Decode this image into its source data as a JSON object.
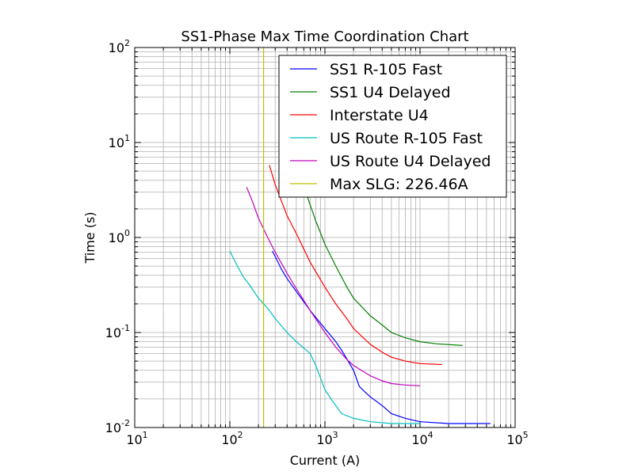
{
  "chart_data": {
    "type": "line",
    "title": "SS1-Phase Max Time Coordination Chart",
    "xlabel": "Current (A)",
    "ylabel": "Time (s)",
    "xscale": "log",
    "yscale": "log",
    "xlim": [
      10,
      100000
    ],
    "ylim": [
      0.01,
      100
    ],
    "grid": true,
    "legend_position": "upper-right",
    "x_tick_labels": [
      {
        "base": "10",
        "exp": "1"
      },
      {
        "base": "10",
        "exp": "2"
      },
      {
        "base": "10",
        "exp": "3"
      },
      {
        "base": "10",
        "exp": "4"
      },
      {
        "base": "10",
        "exp": "5"
      }
    ],
    "y_tick_labels": [
      {
        "base": "10",
        "exp": "-2"
      },
      {
        "base": "10",
        "exp": "-1"
      },
      {
        "base": "10",
        "exp": "0"
      },
      {
        "base": "10",
        "exp": "1"
      },
      {
        "base": "10",
        "exp": "2"
      }
    ],
    "series": [
      {
        "name": "SS1 R-105 Fast",
        "color": "#0000ff",
        "points": [
          [
            280,
            0.72
          ],
          [
            300,
            0.63
          ],
          [
            350,
            0.46
          ],
          [
            400,
            0.37
          ],
          [
            500,
            0.27
          ],
          [
            700,
            0.17
          ],
          [
            1000,
            0.11
          ],
          [
            1300,
            0.08
          ],
          [
            1500,
            0.065
          ],
          [
            1800,
            0.048
          ],
          [
            2000,
            0.04
          ],
          [
            2300,
            0.027
          ],
          [
            2600,
            0.024
          ],
          [
            3000,
            0.021
          ],
          [
            4000,
            0.017
          ],
          [
            5000,
            0.014
          ],
          [
            7000,
            0.0125
          ],
          [
            10000,
            0.0115
          ],
          [
            20000,
            0.011
          ],
          [
            55000,
            0.011
          ]
        ]
      },
      {
        "name": "SS1 U4 Delayed",
        "color": "#008000",
        "points": [
          [
            630,
            3.0
          ],
          [
            700,
            2.2
          ],
          [
            800,
            1.5
          ],
          [
            1000,
            0.85
          ],
          [
            1300,
            0.5
          ],
          [
            1700,
            0.3
          ],
          [
            2000,
            0.23
          ],
          [
            3000,
            0.15
          ],
          [
            4000,
            0.12
          ],
          [
            5000,
            0.1
          ],
          [
            7000,
            0.088
          ],
          [
            10000,
            0.08
          ],
          [
            15000,
            0.076
          ],
          [
            28000,
            0.073
          ]
        ]
      },
      {
        "name": "Interstate U4",
        "color": "#ff0000",
        "points": [
          [
            260,
            5.8
          ],
          [
            300,
            3.6
          ],
          [
            350,
            2.4
          ],
          [
            400,
            1.7
          ],
          [
            500,
            1.1
          ],
          [
            700,
            0.55
          ],
          [
            1000,
            0.3
          ],
          [
            1300,
            0.2
          ],
          [
            1700,
            0.14
          ],
          [
            2000,
            0.11
          ],
          [
            3000,
            0.075
          ],
          [
            4000,
            0.062
          ],
          [
            5000,
            0.055
          ],
          [
            7000,
            0.05
          ],
          [
            10000,
            0.047
          ],
          [
            17000,
            0.046
          ]
        ]
      },
      {
        "name": "US Route R-105 Fast",
        "color": "#00bfbf",
        "points": [
          [
            100,
            0.72
          ],
          [
            120,
            0.5
          ],
          [
            140,
            0.38
          ],
          [
            160,
            0.32
          ],
          [
            200,
            0.23
          ],
          [
            250,
            0.18
          ],
          [
            300,
            0.14
          ],
          [
            400,
            0.1
          ],
          [
            500,
            0.08
          ],
          [
            700,
            0.06
          ],
          [
            800,
            0.045
          ],
          [
            900,
            0.033
          ],
          [
            1000,
            0.025
          ],
          [
            1200,
            0.019
          ],
          [
            1500,
            0.014
          ],
          [
            2000,
            0.0125
          ],
          [
            3000,
            0.0115
          ],
          [
            5000,
            0.011
          ],
          [
            10000,
            0.011
          ]
        ]
      },
      {
        "name": "US Route U4 Delayed",
        "color": "#bf00bf",
        "points": [
          [
            150,
            3.4
          ],
          [
            170,
            2.5
          ],
          [
            200,
            1.6
          ],
          [
            250,
            1.0
          ],
          [
            300,
            0.7
          ],
          [
            400,
            0.42
          ],
          [
            500,
            0.29
          ],
          [
            700,
            0.17
          ],
          [
            1000,
            0.1
          ],
          [
            1300,
            0.07
          ],
          [
            1700,
            0.052
          ],
          [
            2000,
            0.045
          ],
          [
            3000,
            0.035
          ],
          [
            4000,
            0.031
          ],
          [
            5000,
            0.029
          ],
          [
            7000,
            0.028
          ],
          [
            10000,
            0.0275
          ]
        ]
      },
      {
        "name": "Max SLG: 226.46A",
        "color": "#bfbf00",
        "points": [
          [
            226.46,
            0.01
          ],
          [
            226.46,
            100
          ]
        ]
      }
    ]
  }
}
